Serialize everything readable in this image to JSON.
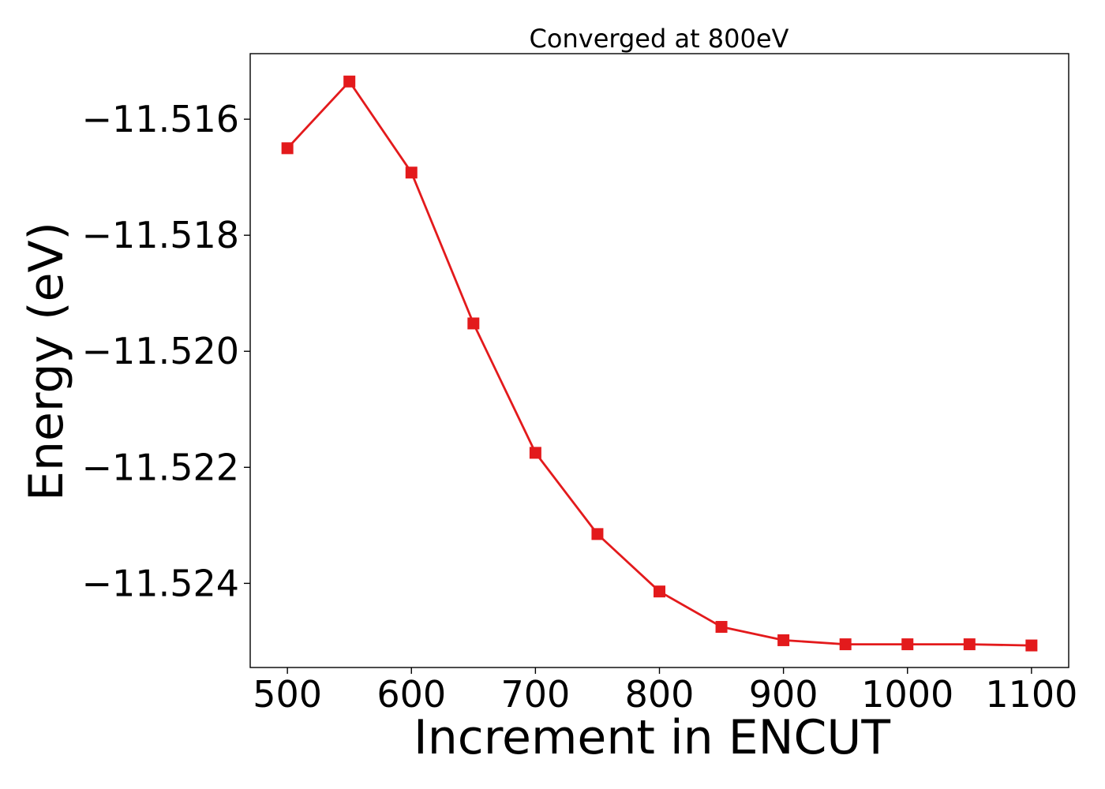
{
  "chart_data": {
    "type": "line",
    "title": "Converged at 800eV",
    "xlabel": "Increment in ENCUT",
    "ylabel": "Energy (eV)",
    "xlim": [
      470,
      1130
    ],
    "ylim": [
      -11.52545,
      -11.51487
    ],
    "xticks": [
      500,
      600,
      700,
      800,
      900,
      1000,
      1100
    ],
    "yticks": [
      -11.516,
      -11.518,
      -11.52,
      -11.522,
      -11.524
    ],
    "ytick_labels": [
      "−11.516",
      "−11.518",
      "−11.520",
      "−11.522",
      "−11.524"
    ],
    "grid": false,
    "series": [
      {
        "color": "#e31a1c",
        "marker": "square",
        "x": [
          500,
          550,
          600,
          650,
          700,
          750,
          800,
          850,
          900,
          950,
          1000,
          1050,
          1100
        ],
        "y": [
          -11.5165,
          -11.51535,
          -11.51692,
          -11.51952,
          -11.52175,
          -11.52315,
          -11.52414,
          -11.52475,
          -11.52498,
          -11.52505,
          -11.52505,
          -11.52505,
          -11.52507
        ]
      }
    ]
  }
}
